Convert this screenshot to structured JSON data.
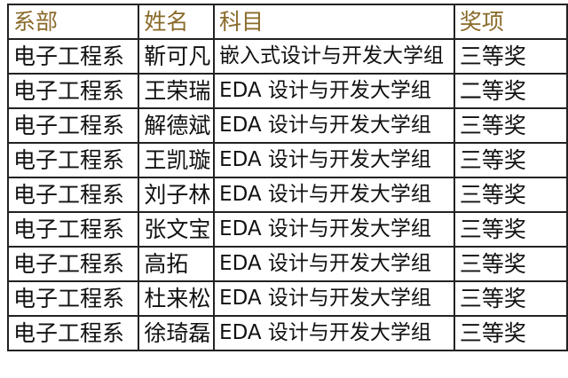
{
  "headers": [
    "系部",
    "姓名",
    "科目",
    "奖项"
  ],
  "colors": {
    "header_text": "#8a6a2a",
    "border": "#222222"
  },
  "rows": [
    [
      "电子工程系",
      "靳可凡",
      "嵌入式设计与开发大学组",
      "三等奖"
    ],
    [
      "电子工程系",
      "王荣瑞",
      "EDA 设计与开发大学组",
      "二等奖"
    ],
    [
      "电子工程系",
      "解德斌",
      "EDA 设计与开发大学组",
      "三等奖"
    ],
    [
      "电子工程系",
      "王凯璇",
      "EDA 设计与开发大学组",
      "三等奖"
    ],
    [
      "电子工程系",
      "刘子林",
      "EDA 设计与开发大学组",
      "三等奖"
    ],
    [
      "电子工程系",
      "张文宝",
      "EDA 设计与开发大学组",
      "三等奖"
    ],
    [
      "电子工程系",
      "高拓",
      "EDA 设计与开发大学组",
      "三等奖"
    ],
    [
      "电子工程系",
      "杜来松",
      "EDA 设计与开发大学组",
      "三等奖"
    ],
    [
      "电子工程系",
      "徐琦磊",
      "EDA 设计与开发大学组",
      "三等奖"
    ]
  ]
}
